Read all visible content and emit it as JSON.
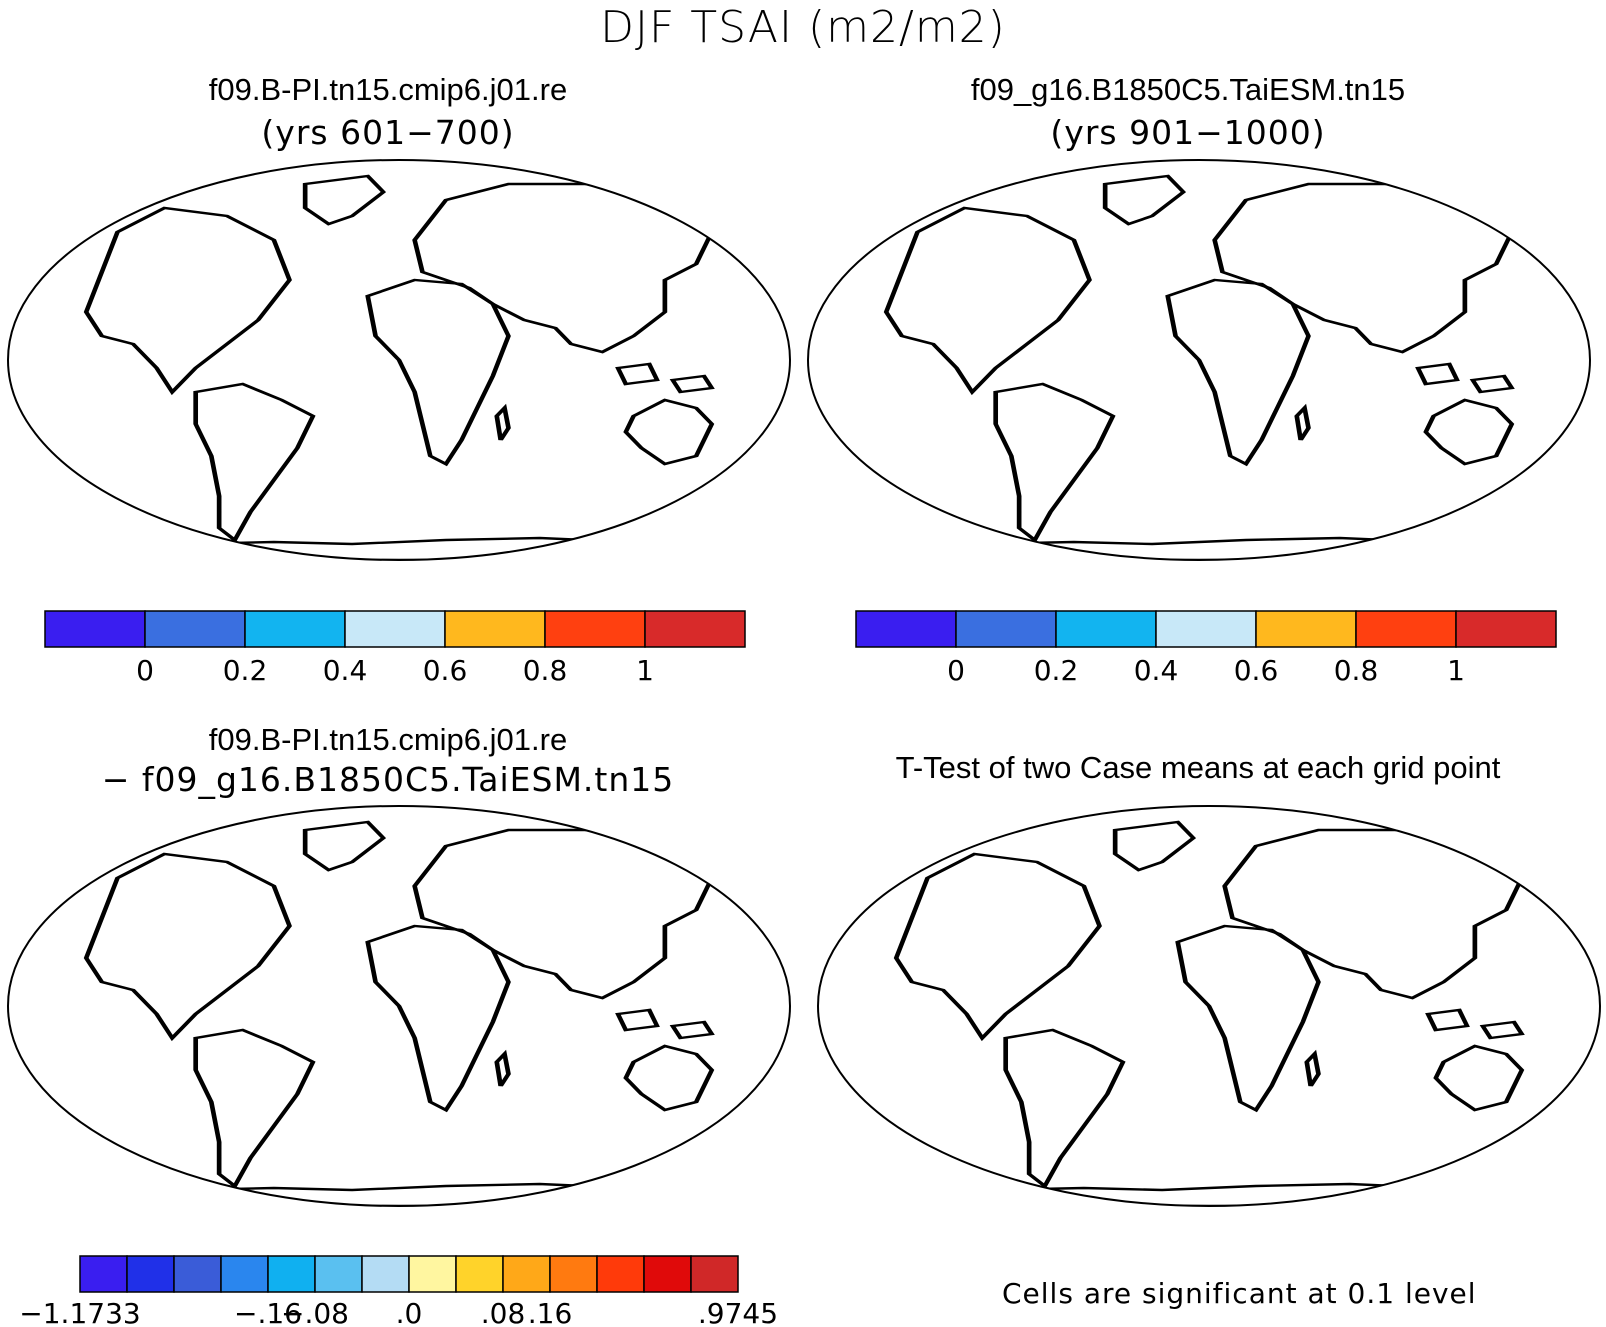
{
  "figure": {
    "title": "DJF TSAI (m2/m2)"
  },
  "panels": [
    {
      "id": "case1",
      "title": "f09.B-PI.tn15.cmip6.j01.re",
      "subtitle": "(yrs 601−700)"
    },
    {
      "id": "case2",
      "title": "f09_g16.B1850C5.TaiESM.tn15",
      "subtitle": "(yrs 901−1000)"
    },
    {
      "id": "difference",
      "title": "f09.B-PI.tn15.cmip6.j01.re",
      "subtitle": "− f09_g16.B1850C5.TaiESM.tn15"
    },
    {
      "id": "ttest",
      "title": "T-Test of two Case means at each grid point",
      "note": "Cells are significant at 0.1 level"
    }
  ],
  "colorbars": {
    "absolute": {
      "colors": [
        "#3a1ef0",
        "#3a6fe0",
        "#12b4f0",
        "#c8e8f8",
        "#ffb81e",
        "#ff4010",
        "#d82a2a"
      ],
      "labels": [
        "0",
        "0.2",
        "0.4",
        "0.6",
        "0.8",
        "1"
      ]
    },
    "difference": {
      "colors": [
        "#3a1ef0",
        "#2030e8",
        "#3a5cd8",
        "#2a86ee",
        "#10b0f0",
        "#5ac0f0",
        "#b4dcf4",
        "#fff6a0",
        "#ffd32a",
        "#ffa818",
        "#ff7a10",
        "#ff3a0a",
        "#e00a0a",
        "#d02828"
      ],
      "labels": [
        "−1.1733",
        "−.16",
        "−.08",
        ".0",
        ".08",
        ".16",
        ".9745"
      ]
    }
  },
  "colors": {
    "ocean": "#ffffff",
    "coast": "#000000",
    "significant": "#ff0000"
  }
}
